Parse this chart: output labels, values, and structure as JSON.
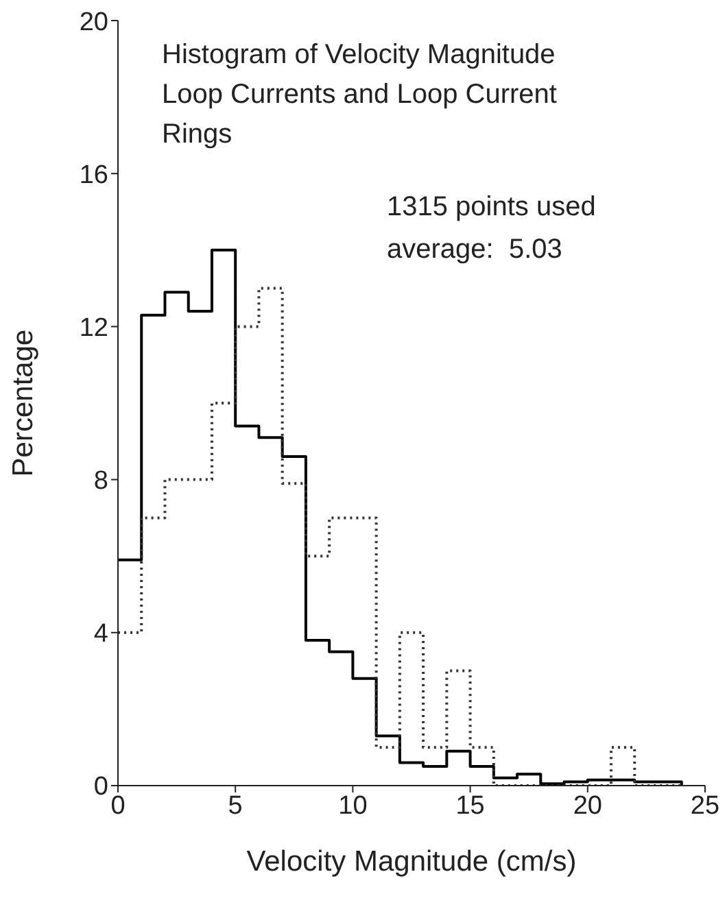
{
  "chart_data": {
    "type": "histogram",
    "title": "Histogram of Velocity Magnitude\nLoop Currents and Loop Current\nRings",
    "annotations": [
      "1315 points used",
      "average:  5.03"
    ],
    "xlabel": "Velocity Magnitude (cm/s)",
    "ylabel": "Percentage",
    "bins": [
      0,
      1,
      2,
      3,
      4,
      5,
      6,
      7,
      8,
      9,
      10,
      11,
      12,
      13,
      14,
      15,
      16,
      17,
      18,
      19,
      20,
      21,
      22,
      23,
      24
    ],
    "series": [
      {
        "color": "#000000",
        "line_style": "solid",
        "values": [
          5.9,
          12.3,
          12.9,
          12.4,
          14.0,
          9.4,
          9.1,
          8.6,
          3.8,
          3.5,
          2.8,
          1.3,
          0.6,
          0.5,
          0.9,
          0.5,
          0.2,
          0.3,
          0.05,
          0.1,
          0.15,
          0.15,
          0.1,
          0.1
        ]
      },
      {
        "color": "#333333",
        "line_style": "dotted",
        "values": [
          4.0,
          7.0,
          8.0,
          8.0,
          10.0,
          12.0,
          13.0,
          7.9,
          6.0,
          7.0,
          7.0,
          1.0,
          4.0,
          1.0,
          3.0,
          1.0,
          0,
          0,
          0,
          0,
          0,
          1.0,
          0,
          0
        ]
      }
    ],
    "xlim": [
      0,
      25
    ],
    "xticks": [
      0,
      5,
      10,
      15,
      20,
      25
    ],
    "ylim": [
      0,
      20
    ],
    "yticks": [
      0,
      4,
      8,
      12,
      16,
      20
    ],
    "grid": false,
    "legend": false
  }
}
